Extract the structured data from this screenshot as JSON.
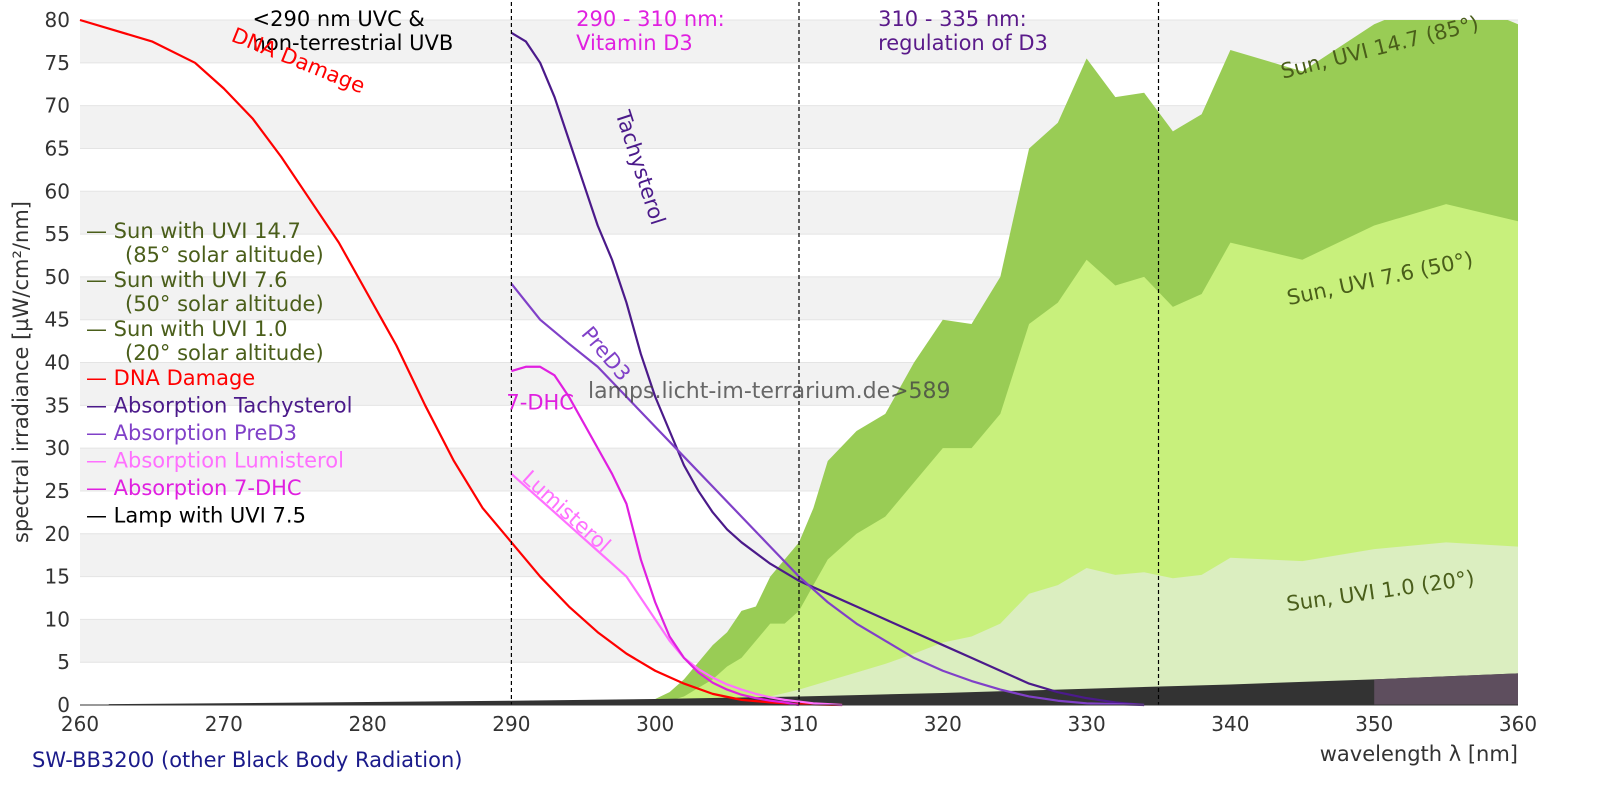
{
  "chart_data": {
    "type": "area",
    "xlabel": "wavelength λ [nm]",
    "ylabel": "spectral irradiance [µW/cm²/nm]",
    "xlim": [
      260,
      360
    ],
    "ylim": [
      0,
      80
    ],
    "xticks": [
      260,
      270,
      280,
      290,
      300,
      310,
      320,
      330,
      340,
      350,
      360
    ],
    "yticks": [
      0,
      5,
      10,
      15,
      20,
      25,
      30,
      35,
      40,
      45,
      50,
      55,
      60,
      65,
      70,
      75,
      80
    ],
    "grid": "horizontal bands",
    "legend_position": "left",
    "vlines": [
      290,
      310,
      335
    ],
    "watermark": "lamps.licht-im-terrarium.de>589",
    "footer": "SW-BB3200 (other Black Body Radiation)",
    "regions": [
      {
        "label_line1": "<290 nm UVC &",
        "label_line2": "non-terrestrial UVB",
        "color": "#000000",
        "x": 272
      },
      {
        "label_line1": "290 - 310 nm:",
        "label_line2": "Vitamin D3",
        "color": "#e020e0",
        "x": 294.5
      },
      {
        "label_line1": "310 - 335 nm:",
        "label_line2": "regulation of D3",
        "color": "#5a1a8a",
        "x": 315.5
      }
    ],
    "legend": [
      {
        "label": "— Sun with UVI 14.7",
        "label2": "(85° solar altitude)",
        "color": "#4a5e1a"
      },
      {
        "label": "— Sun with UVI 7.6",
        "label2": "(50° solar altitude)",
        "color": "#4a5e1a"
      },
      {
        "label": "— Sun with UVI 1.0",
        "label2": "(20° solar altitude)",
        "color": "#4a5e1a"
      },
      {
        "label": "— DNA Damage",
        "color": "#ff0000"
      },
      {
        "label": "— Absorption Tachysterol",
        "color": "#4b1a8a"
      },
      {
        "label": "— Absorption PreD3",
        "color": "#8040c8"
      },
      {
        "label": "— Absorption Lumisterol",
        "color": "#ff70ff"
      },
      {
        "label": "— Absorption 7-DHC",
        "color": "#e020e0"
      },
      {
        "label": "— Lamp with UVI 7.5",
        "color": "#000000"
      }
    ],
    "curve_labels": [
      {
        "text": "DNA Damage",
        "x": 275,
        "y": 74.5,
        "angle": 22,
        "color": "#ff0000"
      },
      {
        "text": "Tachysterol",
        "x": 298.5,
        "y": 62.5,
        "angle": 72,
        "color": "#4b1a8a"
      },
      {
        "text": "PreD3",
        "x": 296.2,
        "y": 40.5,
        "angle": 50,
        "color": "#8040c8"
      },
      {
        "text": "7-DHC",
        "x": 292,
        "y": 34.5,
        "angle": 0,
        "color": "#e020e0"
      },
      {
        "text": "Lumisterol",
        "x": 293.5,
        "y": 22,
        "angle": 42,
        "color": "#ff70ff"
      },
      {
        "text": "Sun, UVI 14.7 (85°)",
        "x": 350.5,
        "y": 76,
        "angle": -14,
        "color": "#4a5e1a"
      },
      {
        "text": "Sun, UVI 7.6 (50°)",
        "x": 350.5,
        "y": 49,
        "angle": -12,
        "color": "#4a5e1a"
      },
      {
        "text": "Sun, UVI 1.0 (20°)",
        "x": 350.5,
        "y": 12.5,
        "angle": -8,
        "color": "#4a5e1a"
      }
    ],
    "series": [
      {
        "name": "Sun with UVI 14.7",
        "color": "#99cc55",
        "x": [
          296,
          298,
          300,
          301,
          302,
          303,
          304,
          305,
          306,
          307,
          308,
          309,
          310,
          311,
          312,
          314,
          316,
          318,
          320,
          322,
          324,
          326,
          328,
          330,
          332,
          334,
          336,
          338,
          340,
          345,
          350,
          355,
          360
        ],
        "values": [
          0,
          0.2,
          0.7,
          1.5,
          3,
          5,
          7,
          8.5,
          11,
          11.5,
          15,
          17,
          19,
          23,
          28.5,
          32,
          34,
          40,
          45,
          44.5,
          50,
          65,
          68,
          75.5,
          71,
          71.5,
          67,
          69,
          76.5,
          74,
          79.5,
          83,
          79.5
        ]
      },
      {
        "name": "Sun with UVI 7.6",
        "color": "#c8f07c",
        "x": [
          300,
          301,
          302,
          303,
          304,
          305,
          306,
          307,
          308,
          309,
          310,
          311,
          312,
          314,
          316,
          318,
          320,
          322,
          324,
          326,
          328,
          330,
          332,
          334,
          336,
          338,
          340,
          345,
          350,
          355,
          360
        ],
        "values": [
          0,
          0.5,
          1,
          2,
          3,
          4.5,
          5.5,
          7.5,
          9.5,
          9.5,
          11,
          14,
          17,
          20,
          22,
          26,
          30,
          30,
          34,
          44.5,
          47,
          52,
          49,
          50,
          46.5,
          48,
          54,
          52,
          56,
          58.5,
          56.5
        ]
      },
      {
        "name": "Sun with UVI 1.0",
        "color": "#dbeec0",
        "x": [
          304,
          306,
          308,
          310,
          312,
          314,
          316,
          318,
          320,
          322,
          324,
          326,
          328,
          330,
          332,
          334,
          336,
          338,
          340,
          345,
          350,
          355,
          360
        ],
        "values": [
          0,
          0.3,
          1,
          1.8,
          2.8,
          3.8,
          4.8,
          6,
          7.3,
          8,
          9.5,
          13,
          14,
          16,
          15.2,
          15.5,
          14.8,
          15.2,
          17.2,
          16.8,
          18.2,
          19,
          18.5
        ]
      },
      {
        "name": "DNA Damage",
        "color": "#ff0000",
        "x": [
          260,
          265,
          268,
          270,
          272,
          274,
          276,
          278,
          280,
          282,
          284,
          286,
          288,
          290,
          292,
          294,
          296,
          298,
          300,
          302,
          304,
          306,
          308,
          310,
          313
        ],
        "values": [
          80,
          77.5,
          75,
          72,
          68.5,
          64,
          59,
          54,
          48,
          42,
          35,
          28.5,
          23,
          19,
          15,
          11.5,
          8.5,
          6,
          4,
          2.5,
          1.3,
          0.6,
          0.3,
          0.1,
          0
        ]
      },
      {
        "name": "Absorption Tachysterol",
        "color": "#4b1a8a",
        "x": [
          290,
          291,
          292,
          293,
          294,
          295,
          296,
          297,
          298,
          299,
          300,
          301,
          302,
          303,
          304,
          305,
          306,
          308,
          310,
          312,
          314,
          316,
          318,
          320,
          322,
          324,
          326,
          328,
          330,
          332,
          334
        ],
        "values": [
          78.5,
          77.5,
          75,
          71,
          66,
          61,
          56,
          52,
          47,
          41,
          36,
          32,
          28,
          25,
          22.5,
          20.5,
          19,
          16.5,
          14.5,
          13,
          11.5,
          10,
          8.5,
          7,
          5.5,
          4,
          2.5,
          1.5,
          0.8,
          0.3,
          0
        ]
      },
      {
        "name": "Absorption PreD3",
        "color": "#8040c8",
        "x": [
          290,
          292,
          294,
          296,
          298,
          300,
          302,
          304,
          306,
          308,
          310,
          312,
          314,
          316,
          318,
          320,
          322,
          324,
          326,
          328,
          330,
          332,
          334
        ],
        "values": [
          49.2,
          45,
          42.2,
          39.5,
          36,
          32.5,
          29,
          25.5,
          22,
          18.5,
          15,
          12,
          9.5,
          7.5,
          5.5,
          4,
          2.8,
          1.8,
          1,
          0.5,
          0.2,
          0.1,
          0
        ]
      },
      {
        "name": "Absorption Lumisterol",
        "color": "#ff70ff",
        "x": [
          290,
          291,
          292,
          293,
          294,
          295,
          296,
          297,
          298,
          299,
          300,
          301,
          302,
          303,
          304,
          305,
          306,
          307,
          308,
          309,
          310,
          311,
          312,
          313
        ],
        "values": [
          27,
          25.5,
          24,
          22.5,
          21,
          19.5,
          18,
          16.5,
          15,
          12.5,
          10,
          7.5,
          5.5,
          4.2,
          3.2,
          2.4,
          1.8,
          1.3,
          0.9,
          0.6,
          0.4,
          0.2,
          0.1,
          0
        ]
      },
      {
        "name": "Absorption 7-DHC",
        "color": "#e020e0",
        "x": [
          290,
          291,
          292,
          293,
          294,
          295,
          296,
          297,
          298,
          299,
          300,
          301,
          302,
          303,
          304,
          305,
          306,
          307,
          308,
          309,
          310
        ],
        "values": [
          39,
          39.5,
          39.5,
          38.5,
          36,
          33,
          30,
          27,
          23.5,
          17,
          12,
          8,
          5.5,
          3.8,
          2.6,
          1.8,
          1.2,
          0.8,
          0.5,
          0.3,
          0
        ]
      },
      {
        "name": "Lamp with UVI 7.5",
        "color": "#333333",
        "x": [
          262,
          270,
          280,
          290,
          300,
          310,
          315,
          320,
          330,
          340,
          350,
          360
        ],
        "values": [
          0.1,
          0.2,
          0.35,
          0.5,
          0.7,
          1.0,
          1.2,
          1.4,
          1.9,
          2.4,
          3.0,
          3.7
        ],
        "highlight_from": 350,
        "highlight_color": "#5e4e5e"
      }
    ]
  }
}
